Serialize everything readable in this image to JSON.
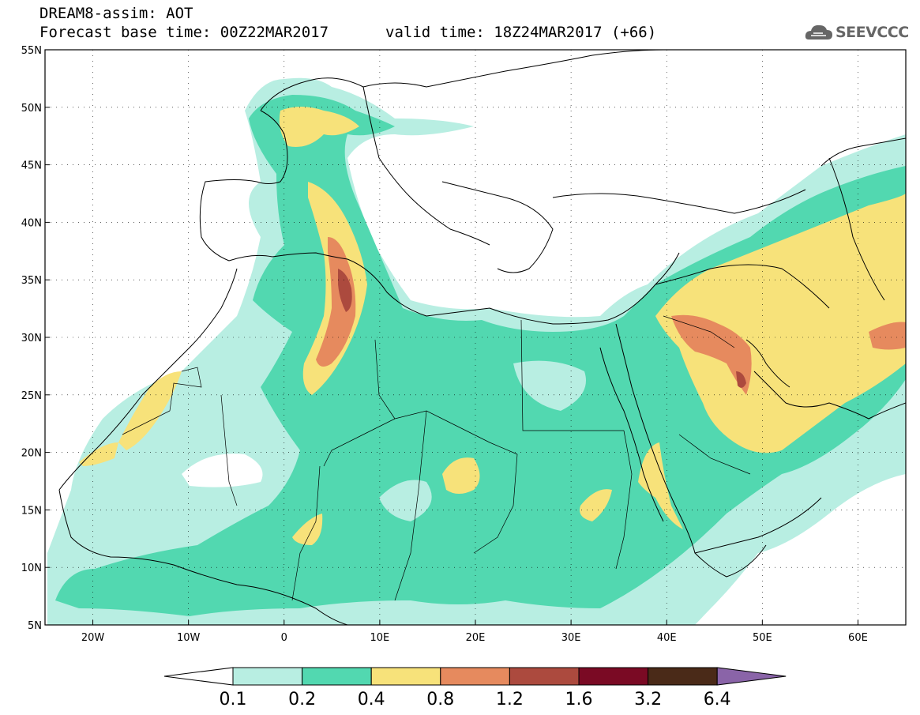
{
  "header": {
    "title": "DREAM8-assim: AOT",
    "base_time": "Forecast base time: 00Z22MAR2017",
    "valid_time": "valid time: 18Z24MAR2017 (+66)",
    "logo_text": "SEEVCCC"
  },
  "map": {
    "lat_labels": [
      "55N",
      "50N",
      "45N",
      "40N",
      "35N",
      "30N",
      "25N",
      "20N",
      "15N",
      "10N",
      "5N"
    ],
    "lon_labels": [
      "20W",
      "10W",
      "0",
      "10E",
      "20E",
      "30E",
      "40E",
      "50E",
      "60E"
    ],
    "lat_range": [
      5,
      55
    ],
    "lon_range": [
      -25,
      65
    ]
  },
  "colorbar": {
    "labels": [
      "0.1",
      "0.2",
      "0.4",
      "0.8",
      "1.2",
      "1.6",
      "3.2",
      "6.4"
    ],
    "colors": [
      "#b8eee2",
      "#52d8b0",
      "#f7e27a",
      "#e68a5e",
      "#ac4a3e",
      "#7a0a24",
      "#4a2a18",
      "#8a64a8"
    ]
  }
}
